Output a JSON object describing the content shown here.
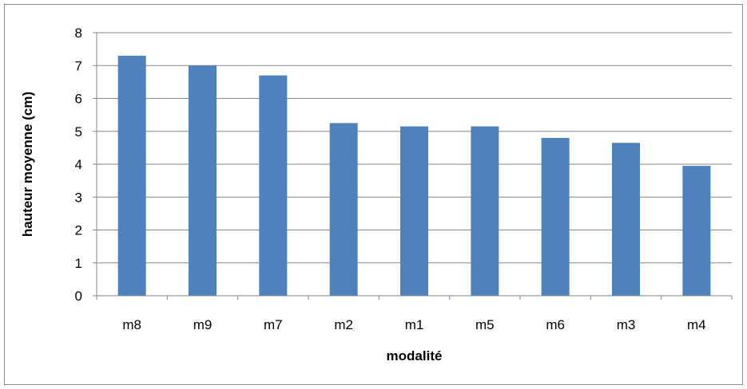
{
  "chart_data": {
    "type": "bar",
    "categories": [
      "m8",
      "m9",
      "m7",
      "m2",
      "m1",
      "m5",
      "m6",
      "m3",
      "m4"
    ],
    "values": [
      7.3,
      7.0,
      6.7,
      5.25,
      5.15,
      5.15,
      4.8,
      4.65,
      3.95
    ],
    "title": "",
    "xlabel": "modalité",
    "ylabel": "hauteur moyenne (cm)",
    "ylim": [
      0,
      8
    ],
    "yticks": [
      0,
      1,
      2,
      3,
      4,
      5,
      6,
      7,
      8
    ],
    "grid": true,
    "legend": "none",
    "bar_color": "#4f81bd",
    "grid_color": "#868686"
  }
}
